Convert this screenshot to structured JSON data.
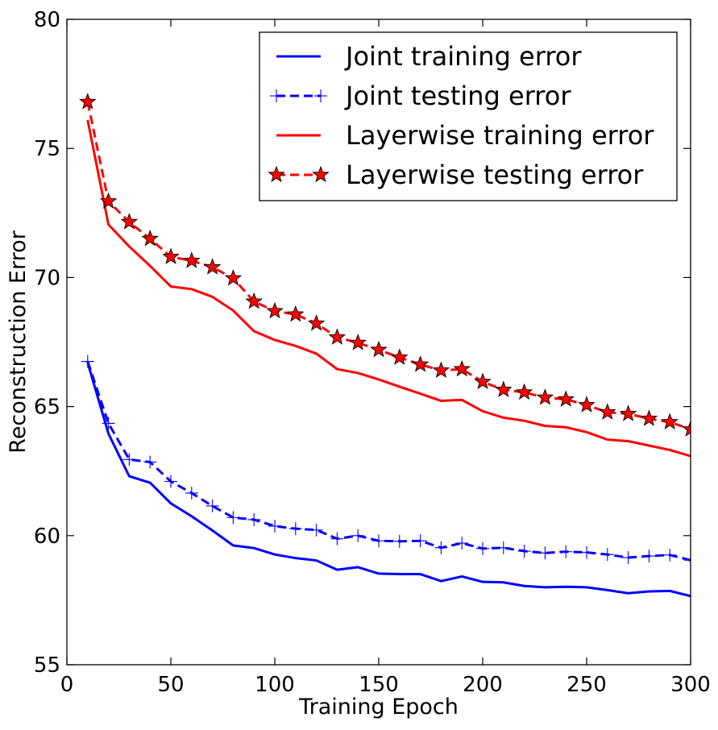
{
  "chart_data": {
    "type": "line",
    "title": "",
    "xlabel": "Training Epoch",
    "ylabel": "Reconstruction Error",
    "xlim": [
      0,
      300
    ],
    "ylim": [
      55,
      80
    ],
    "xticks": [
      0,
      50,
      100,
      150,
      200,
      250,
      300
    ],
    "yticks": [
      55,
      60,
      65,
      70,
      75,
      80
    ],
    "grid": false,
    "legend_position": "top-right",
    "x": [
      10,
      20,
      30,
      40,
      50,
      60,
      70,
      80,
      90,
      100,
      110,
      120,
      130,
      140,
      150,
      160,
      170,
      180,
      190,
      200,
      210,
      220,
      230,
      240,
      250,
      260,
      270,
      280,
      290,
      300
    ],
    "series": [
      {
        "name": "Joint training error",
        "color": "#0000ff",
        "line_style": "solid",
        "marker": "none",
        "values": [
          66.7,
          63.95,
          62.3,
          62.05,
          61.25,
          60.75,
          60.2,
          59.62,
          59.52,
          59.27,
          59.13,
          59.04,
          58.68,
          58.78,
          58.53,
          58.51,
          58.51,
          58.24,
          58.42,
          58.21,
          58.19,
          58.05,
          58.0,
          58.02,
          58.0,
          57.89,
          57.77,
          57.84,
          57.86,
          57.66
        ]
      },
      {
        "name": "Joint testing error",
        "color": "#0000ff",
        "line_style": "dashed",
        "marker": "plus",
        "values": [
          66.75,
          64.35,
          62.95,
          62.85,
          62.1,
          61.65,
          61.15,
          60.7,
          60.62,
          60.37,
          60.27,
          60.22,
          59.88,
          60.0,
          59.8,
          59.78,
          59.8,
          59.53,
          59.71,
          59.5,
          59.53,
          59.4,
          59.33,
          59.38,
          59.35,
          59.27,
          59.15,
          59.21,
          59.25,
          59.05
        ]
      },
      {
        "name": "Layerwise training error",
        "color": "#ff0000",
        "line_style": "solid",
        "marker": "none",
        "values": [
          76.1,
          72.05,
          71.2,
          70.45,
          69.65,
          69.55,
          69.25,
          68.72,
          67.92,
          67.58,
          67.35,
          67.05,
          66.45,
          66.3,
          66.05,
          65.77,
          65.5,
          65.22,
          65.26,
          64.82,
          64.57,
          64.45,
          64.25,
          64.2,
          64.01,
          63.72,
          63.66,
          63.49,
          63.32,
          63.08
        ]
      },
      {
        "name": "Layerwise testing error",
        "color": "#ff0000",
        "line_style": "dashed",
        "marker": "star",
        "values": [
          76.8,
          72.95,
          72.15,
          71.5,
          70.8,
          70.65,
          70.4,
          69.97,
          69.07,
          68.7,
          68.57,
          68.22,
          67.68,
          67.47,
          67.2,
          66.9,
          66.63,
          66.4,
          66.45,
          65.96,
          65.65,
          65.55,
          65.35,
          65.28,
          65.06,
          64.78,
          64.72,
          64.53,
          64.4,
          64.12
        ]
      }
    ]
  }
}
